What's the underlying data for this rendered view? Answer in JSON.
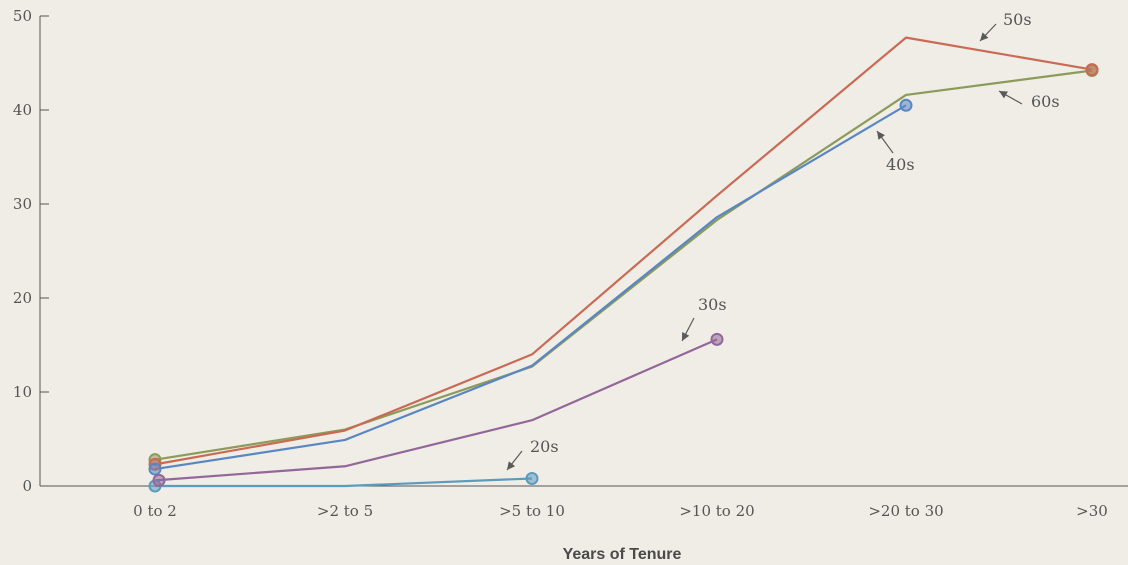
{
  "chart_data": {
    "type": "line",
    "title": "",
    "xlabel": "Years of Tenure",
    "ylabel": "",
    "categories": [
      "0 to 2",
      ">2 to 5",
      ">5 to 10",
      ">10 to 20",
      ">20 to 30",
      ">30"
    ],
    "ylim": [
      0,
      50
    ],
    "yticks": [
      "0",
      "10",
      "20",
      "30",
      "40",
      "50"
    ],
    "grid": false,
    "legend": "none",
    "series": [
      {
        "name": "20s",
        "color": "#5b9bbf",
        "values": [
          0,
          0,
          0.8,
          null,
          null,
          null
        ]
      },
      {
        "name": "30s",
        "color": "#93679a",
        "values": [
          0.6,
          2.1,
          7.0,
          15.6,
          null,
          null
        ]
      },
      {
        "name": "40s",
        "color": "#5a87c4",
        "values": [
          1.8,
          4.9,
          12.8,
          28.6,
          40.5,
          null
        ]
      },
      {
        "name": "50s",
        "color": "#c96a55",
        "values": [
          2.3,
          5.9,
          14.0,
          30.9,
          47.7,
          44.3
        ]
      },
      {
        "name": "60s",
        "color": "#8c9a5a",
        "values": [
          2.8,
          6.0,
          12.7,
          28.3,
          41.6,
          44.2
        ]
      }
    ]
  }
}
